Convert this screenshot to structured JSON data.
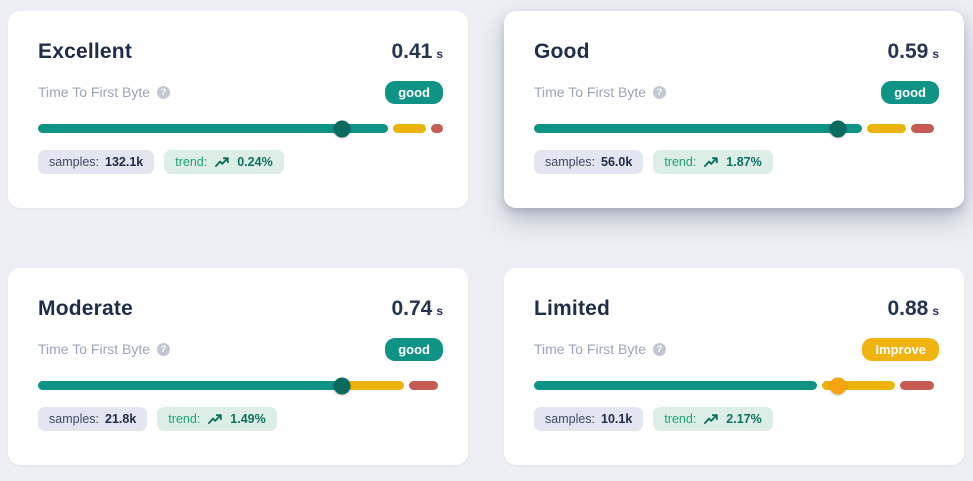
{
  "page": {
    "background_color": "#edeff4",
    "card_color": "#ffffff"
  },
  "colors": {
    "teal": "#0e9384",
    "teal_dark": "#0d6a5f",
    "yellow": "#edb30d",
    "orange": "#f6a30e",
    "red": "#c65b54",
    "badge_good": "#0e9384",
    "badge_improve": "#f0b310",
    "title_text": "#1f2d49",
    "muted_text": "#9ba5b8"
  },
  "highlighted_card_index": 1,
  "cards": [
    {
      "title": "Excellent",
      "value": "0.41",
      "unit": "s",
      "metric_label": "Time To First Byte",
      "help_icon": "question-mark-circle",
      "badge": {
        "label": "good",
        "style": "good"
      },
      "bar": {
        "segments": [
          {
            "color": "teal",
            "pct": 86.5
          },
          {
            "color": "yellow",
            "pct": 8
          },
          {
            "color": "red",
            "pct": 3
          }
        ],
        "marker": {
          "pct": 75,
          "color": "teal-dark"
        }
      },
      "samples_label": "samples:",
      "samples_value": "132.1k",
      "trend_label": "trend:",
      "trend_icon": "trending-up-arrow",
      "trend_value": "0.24%"
    },
    {
      "title": "Good",
      "value": "0.59",
      "unit": "s",
      "metric_label": "Time To First Byte",
      "help_icon": "question-mark-circle",
      "badge": {
        "label": "good",
        "style": "good"
      },
      "bar": {
        "segments": [
          {
            "color": "teal",
            "pct": 81
          },
          {
            "color": "yellow",
            "pct": 9.7
          },
          {
            "color": "red",
            "pct": 5.6
          }
        ],
        "marker": {
          "pct": 75,
          "color": "teal-dark"
        }
      },
      "samples_label": "samples:",
      "samples_value": "56.0k",
      "trend_label": "trend:",
      "trend_icon": "trending-up-arrow",
      "trend_value": "1.87%"
    },
    {
      "title": "Moderate",
      "value": "0.74",
      "unit": "s",
      "metric_label": "Time To First Byte",
      "help_icon": "question-mark-circle",
      "badge": {
        "label": "good",
        "style": "good"
      },
      "bar": {
        "segments": [
          {
            "color": "teal",
            "pct": 74.8
          },
          {
            "color": "yellow",
            "pct": 14.4
          },
          {
            "color": "red",
            "pct": 7.2
          }
        ],
        "marker": {
          "pct": 75,
          "color": "teal-dark"
        }
      },
      "samples_label": "samples:",
      "samples_value": "21.8k",
      "trend_label": "trend:",
      "trend_icon": "trending-up-arrow",
      "trend_value": "1.49%"
    },
    {
      "title": "Limited",
      "value": "0.88",
      "unit": "s",
      "metric_label": "Time To First Byte",
      "help_icon": "question-mark-circle",
      "badge": {
        "label": "Improve",
        "style": "improve"
      },
      "bar": {
        "segments": [
          {
            "color": "teal",
            "pct": 69.9
          },
          {
            "color": "yellow",
            "pct": 18
          },
          {
            "color": "red",
            "pct": 8.4
          }
        ],
        "marker": {
          "pct": 75,
          "color": "orange"
        }
      },
      "samples_label": "samples:",
      "samples_value": "10.1k",
      "trend_label": "trend:",
      "trend_icon": "trending-up-arrow",
      "trend_value": "2.17%"
    }
  ]
}
